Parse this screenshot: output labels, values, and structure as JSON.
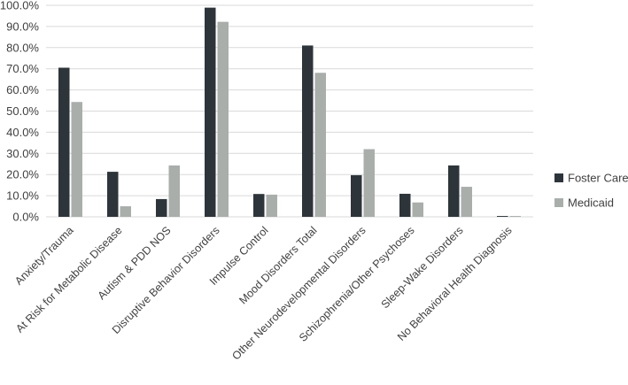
{
  "chart_data": {
    "type": "bar",
    "title": "",
    "xlabel": "",
    "ylabel": "",
    "ylim": [
      0,
      100
    ],
    "y_ticks": [
      "0.0%",
      "10.0%",
      "20.0%",
      "30.0%",
      "40.0%",
      "50.0%",
      "60.0%",
      "70.0%",
      "80.0%",
      "90.0%",
      "100.0%"
    ],
    "grid": true,
    "legend_position": "right",
    "categories": [
      "Anxiety/Trauma",
      "At Risk for Metabolic Disease",
      "Autism & PDD NOS",
      "Disruptive Behavior Disorders",
      "Impulse Control",
      "Mood Disorders Total",
      "Other Neurodevelopmental Disorders",
      "Schizophrenia/Other Psychoses",
      "Sleep-Wake Disorders",
      "No Behavioral Health Diagnosis"
    ],
    "series": [
      {
        "name": "Foster Care",
        "color": "#2e353a",
        "values": [
          70.5,
          21.3,
          8.4,
          98.9,
          10.8,
          81.0,
          19.7,
          10.9,
          24.3,
          0.4
        ]
      },
      {
        "name": "Medicaid",
        "color": "#a9aeab",
        "values": [
          54.3,
          5.0,
          24.3,
          92.2,
          10.5,
          68.1,
          32.0,
          6.8,
          14.2,
          0.4
        ]
      }
    ]
  }
}
